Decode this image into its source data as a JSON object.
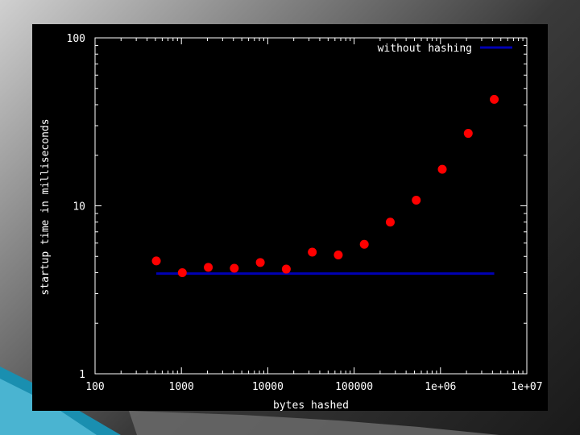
{
  "colors": {
    "panel": "#000000",
    "axis": "#ffffff",
    "points": "#ff0000",
    "baseline": "#0000b4",
    "accent_teal": "#1a8fb0"
  },
  "chart_data": {
    "type": "scatter",
    "title": "",
    "xlabel": "bytes hashed",
    "ylabel": "startup time in milliseconds",
    "x_scale": "log",
    "y_scale": "log",
    "xlim": [
      100,
      10000000
    ],
    "ylim": [
      1,
      100
    ],
    "x_ticks": [
      100,
      1000,
      10000,
      100000,
      1000000,
      10000000
    ],
    "x_tick_labels": [
      "100",
      "1000",
      "10000",
      "100000",
      "1e+06",
      "1e+07"
    ],
    "y_ticks": [
      1,
      10,
      100
    ],
    "y_tick_labels": [
      "1",
      "10",
      "100"
    ],
    "grid": false,
    "legend_position": "top-right",
    "series": [
      {
        "kind": "points",
        "x": [
          512,
          1024,
          2048,
          4096,
          8192,
          16384,
          32768,
          65536,
          131072,
          262144,
          524288,
          1048576,
          2097152,
          4194304
        ],
        "y": [
          4.7,
          4.0,
          4.3,
          4.25,
          4.6,
          4.2,
          5.3,
          5.1,
          5.9,
          8.0,
          10.8,
          16.5,
          27.0,
          43.0
        ]
      },
      {
        "kind": "line",
        "name": "without hashing",
        "x": [
          512,
          4194304
        ],
        "y": [
          3.95,
          3.95
        ]
      }
    ]
  }
}
